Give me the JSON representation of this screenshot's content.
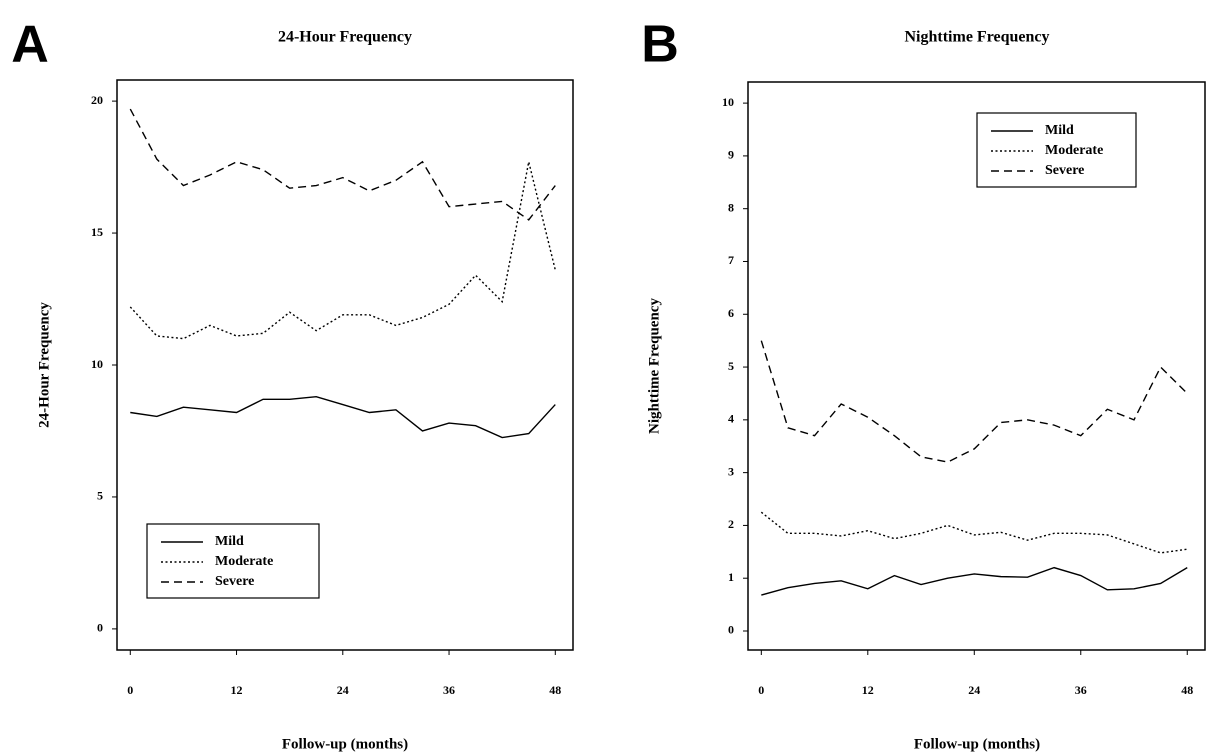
{
  "chart_data": [
    {
      "type": "line",
      "panel": "A",
      "title": "24-Hour Frequency",
      "xlabel": "Follow-up (months)",
      "ylabel": "24-Hour Frequency",
      "x": [
        0,
        3,
        6,
        9,
        12,
        15,
        18,
        21,
        24,
        27,
        30,
        33,
        36,
        39,
        42,
        45,
        48
      ],
      "xlim": [
        -1.5,
        50
      ],
      "ylim": [
        -0.8,
        20.8
      ],
      "xticks": [
        0,
        12,
        24,
        36,
        48
      ],
      "yticks": [
        0,
        5,
        10,
        15,
        20
      ],
      "legend": "lower left",
      "series": [
        {
          "name": "Mild",
          "color": "#000",
          "dash": "solid",
          "values": [
            8.2,
            8.05,
            8.4,
            8.3,
            8.2,
            8.7,
            8.7,
            8.8,
            8.5,
            8.2,
            8.3,
            7.5,
            7.8,
            7.7,
            7.25,
            7.4,
            8.5
          ]
        },
        {
          "name": "Moderate",
          "color": "#000",
          "dash": "dotted",
          "values": [
            12.2,
            11.1,
            11.0,
            11.5,
            11.1,
            11.2,
            12.0,
            11.3,
            11.9,
            11.9,
            11.5,
            11.8,
            12.3,
            13.4,
            12.4,
            17.7,
            13.6
          ]
        },
        {
          "name": "Severe",
          "color": "#000",
          "dash": "dashed",
          "values": [
            19.7,
            17.8,
            16.8,
            17.2,
            17.7,
            17.4,
            16.7,
            16.8,
            17.1,
            16.6,
            17.0,
            17.7,
            16.0,
            16.1,
            16.2,
            15.5,
            16.8
          ]
        }
      ]
    },
    {
      "type": "line",
      "panel": "B",
      "title": "Nighttime Frequency",
      "xlabel": "Follow-up (months)",
      "ylabel": "Nighttime Frequency",
      "x": [
        0,
        3,
        6,
        9,
        12,
        15,
        18,
        21,
        24,
        27,
        30,
        33,
        36,
        39,
        42,
        45,
        48
      ],
      "xlim": [
        -1.5,
        50
      ],
      "ylim": [
        -0.36,
        10.4
      ],
      "xticks": [
        0,
        12,
        24,
        36,
        48
      ],
      "yticks": [
        0,
        1,
        2,
        3,
        4,
        5,
        6,
        7,
        8,
        9,
        10
      ],
      "legend": "upper right",
      "series": [
        {
          "name": "Mild",
          "color": "#000",
          "dash": "solid",
          "values": [
            0.68,
            0.82,
            0.9,
            0.95,
            0.8,
            1.05,
            0.88,
            1.0,
            1.08,
            1.03,
            1.02,
            1.2,
            1.05,
            0.78,
            0.8,
            0.9,
            1.2
          ]
        },
        {
          "name": "Moderate",
          "color": "#000",
          "dash": "dotted",
          "values": [
            2.25,
            1.85,
            1.85,
            1.8,
            1.9,
            1.75,
            1.85,
            2.0,
            1.82,
            1.87,
            1.72,
            1.85,
            1.85,
            1.82,
            1.65,
            1.48,
            1.55
          ]
        },
        {
          "name": "Severe",
          "color": "#000",
          "dash": "dashed",
          "values": [
            5.5,
            3.85,
            3.7,
            4.3,
            4.05,
            3.7,
            3.3,
            3.2,
            3.45,
            3.95,
            4.0,
            3.9,
            3.7,
            4.2,
            4.0,
            5.0,
            4.5
          ]
        }
      ]
    }
  ]
}
